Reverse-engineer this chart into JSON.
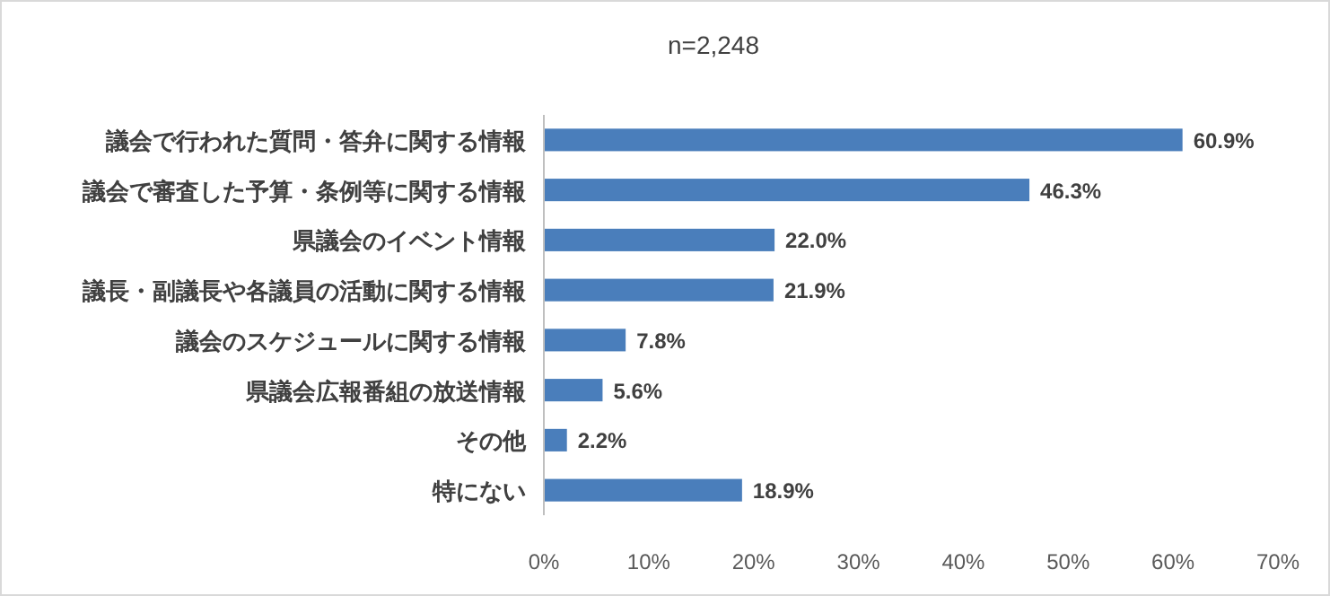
{
  "chart_data": {
    "type": "bar",
    "orientation": "horizontal",
    "title": "n=2,248",
    "categories": [
      "議会で行われた質問・答弁に関する情報",
      "議会で審査した予算・条例等に関する情報",
      "県議会のイベント情報",
      "議長・副議長や各議員の活動に関する情報",
      "議会のスケジュールに関する情報",
      "県議会広報番組の放送情報",
      "その他",
      "特にない"
    ],
    "values": [
      60.9,
      46.3,
      22.0,
      21.9,
      7.8,
      5.6,
      2.2,
      18.9
    ],
    "value_labels": [
      "60.9%",
      "46.3%",
      "22.0%",
      "21.9%",
      "7.8%",
      "5.6%",
      "2.2%",
      "18.9%"
    ],
    "color": "#4a7ebb",
    "xlim": [
      0,
      70
    ],
    "xticks": [
      {
        "value": 0,
        "label": "0%"
      },
      {
        "value": 10,
        "label": "10%"
      },
      {
        "value": 20,
        "label": "20%"
      },
      {
        "value": 30,
        "label": "30%"
      },
      {
        "value": 40,
        "label": "40%"
      },
      {
        "value": 50,
        "label": "50%"
      },
      {
        "value": 60,
        "label": "60%"
      },
      {
        "value": 70,
        "label": "70%"
      }
    ],
    "grid": false
  }
}
